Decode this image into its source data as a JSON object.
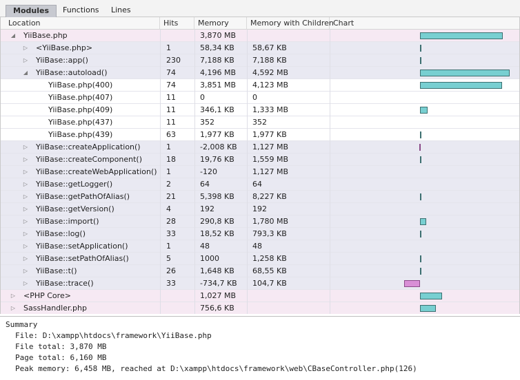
{
  "tabs": [
    {
      "label": "Modules",
      "active": true
    },
    {
      "label": "Functions",
      "active": false
    },
    {
      "label": "Lines",
      "active": false
    }
  ],
  "columns": {
    "location": "Location",
    "hits": "Hits",
    "memory": "Memory",
    "memory_children": "Memory with Children",
    "chart": "Chart"
  },
  "rows": [
    {
      "location": "YiiBase.php",
      "hits": "",
      "memory": "3,870 MB",
      "memory_children": "",
      "level": 0,
      "toggle": "expanded",
      "bar": 3870
    },
    {
      "location": "<YiiBase.php>",
      "hits": "1",
      "memory": "58,34 KB",
      "memory_children": "58,67 KB",
      "level": 1,
      "toggle": "collapsed",
      "bar": 58
    },
    {
      "location": "YiiBase::app()",
      "hits": "230",
      "memory": "7,188 KB",
      "memory_children": "7,188 KB",
      "level": 1,
      "toggle": "collapsed",
      "bar": 7
    },
    {
      "location": "YiiBase::autoload()",
      "hits": "74",
      "memory": "4,196 MB",
      "memory_children": "4,592 MB",
      "level": 1,
      "toggle": "expanded",
      "bar": 4196
    },
    {
      "location": "YiiBase.php(400)",
      "hits": "74",
      "memory": "3,851 MB",
      "memory_children": "4,123 MB",
      "level": 2,
      "toggle": "none",
      "bar": 3851
    },
    {
      "location": "YiiBase.php(407)",
      "hits": "11",
      "memory": "0",
      "memory_children": "0",
      "level": 2,
      "toggle": "none",
      "bar": 0
    },
    {
      "location": "YiiBase.php(409)",
      "hits": "11",
      "memory": "346,1 KB",
      "memory_children": "1,333 MB",
      "level": 2,
      "toggle": "none",
      "bar": 346
    },
    {
      "location": "YiiBase.php(437)",
      "hits": "11",
      "memory": "352",
      "memory_children": "352",
      "level": 2,
      "toggle": "none",
      "bar": 0
    },
    {
      "location": "YiiBase.php(439)",
      "hits": "63",
      "memory": "1,977 KB",
      "memory_children": "1,977 KB",
      "level": 2,
      "toggle": "none",
      "bar": 2
    },
    {
      "location": "YiiBase::createApplication()",
      "hits": "1",
      "memory": "-2,008 KB",
      "memory_children": "1,127 MB",
      "level": 1,
      "toggle": "collapsed",
      "bar": -2
    },
    {
      "location": "YiiBase::createComponent()",
      "hits": "18",
      "memory": "19,76 KB",
      "memory_children": "1,559 MB",
      "level": 1,
      "toggle": "collapsed",
      "bar": 20
    },
    {
      "location": "YiiBase::createWebApplication()",
      "hits": "1",
      "memory": "-120",
      "memory_children": "1,127 MB",
      "level": 1,
      "toggle": "collapsed",
      "bar": 0
    },
    {
      "location": "YiiBase::getLogger()",
      "hits": "2",
      "memory": "64",
      "memory_children": "64",
      "level": 1,
      "toggle": "collapsed",
      "bar": 0
    },
    {
      "location": "YiiBase::getPathOfAlias()",
      "hits": "21",
      "memory": "5,398 KB",
      "memory_children": "8,227 KB",
      "level": 1,
      "toggle": "collapsed",
      "bar": 5
    },
    {
      "location": "YiiBase::getVersion()",
      "hits": "4",
      "memory": "192",
      "memory_children": "192",
      "level": 1,
      "toggle": "collapsed",
      "bar": 0
    },
    {
      "location": "YiiBase::import()",
      "hits": "28",
      "memory": "290,8 KB",
      "memory_children": "1,780 MB",
      "level": 1,
      "toggle": "collapsed",
      "bar": 291
    },
    {
      "location": "YiiBase::log()",
      "hits": "33",
      "memory": "18,52 KB",
      "memory_children": "793,3 KB",
      "level": 1,
      "toggle": "collapsed",
      "bar": 19
    },
    {
      "location": "YiiBase::setApplication()",
      "hits": "1",
      "memory": "48",
      "memory_children": "48",
      "level": 1,
      "toggle": "collapsed",
      "bar": 0
    },
    {
      "location": "YiiBase::setPathOfAlias()",
      "hits": "5",
      "memory": "1000",
      "memory_children": "1,258 KB",
      "level": 1,
      "toggle": "collapsed",
      "bar": 1
    },
    {
      "location": "YiiBase::t()",
      "hits": "26",
      "memory": "1,648 KB",
      "memory_children": "68,55 KB",
      "level": 1,
      "toggle": "collapsed",
      "bar": 2
    },
    {
      "location": "YiiBase::trace()",
      "hits": "33",
      "memory": "-734,7 KB",
      "memory_children": "104,7 KB",
      "level": 1,
      "toggle": "collapsed",
      "bar": -735
    },
    {
      "location": "<PHP Core>",
      "hits": "",
      "memory": "1,027 MB",
      "memory_children": "",
      "level": 0,
      "toggle": "collapsed",
      "bar": 1027
    },
    {
      "location": "SassHandler.php",
      "hits": "",
      "memory": "756,6 KB",
      "memory_children": "",
      "level": 0,
      "toggle": "collapsed",
      "bar": 757
    }
  ],
  "summary": {
    "title": "Summary",
    "file": "File: D:\\xampp\\htdocs\\framework\\YiiBase.php",
    "file_total": "File total: 3,870 MB",
    "page_total": "Page total: 6,160 MB",
    "peak": "Peak memory: 6,458 MB, reached at D:\\xampp\\htdocs\\framework\\web\\CBaseController.php(126)"
  },
  "colors": {
    "bar_positive": "#78cfd1",
    "bar_negative": "#d98fd6",
    "row_file": "#f6e9f3",
    "row_function": "#e9e9f2"
  }
}
